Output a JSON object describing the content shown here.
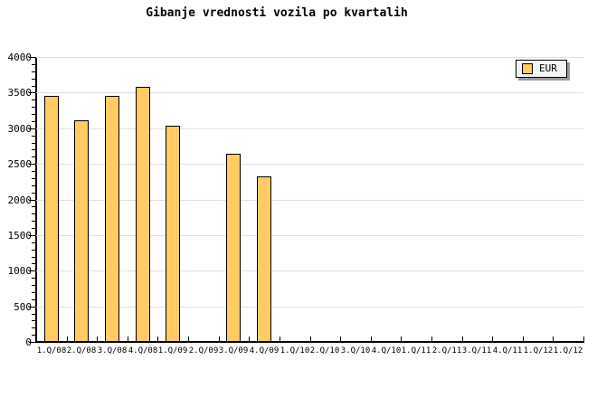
{
  "title": "Gibanje vrednosti vozila po kvartalih",
  "legend": {
    "label": "EUR",
    "position": "top-right",
    "swatch_color": "#FFCB63"
  },
  "colors": {
    "background": "#FFFFFF",
    "bar_fill": "#FFCB63",
    "bar_border": "#000000",
    "grid": "#E0E0E0",
    "axis": "#000000",
    "text": "#000000",
    "legend_bg": "#F4F4F4",
    "legend_shadow": "#999999"
  },
  "chart_data": {
    "type": "bar",
    "title": "Gibanje vrednosti vozila po kvartalih",
    "xlabel": "",
    "ylabel": "",
    "categories": [
      "1.Q/08",
      "2.Q/08",
      "3.Q/08",
      "4.Q/08",
      "1.Q/09",
      "2.Q/09",
      "3.Q/09",
      "4.Q/09",
      "1.Q/10",
      "2.Q/10",
      "3.Q/10",
      "4.Q/10",
      "1.Q/11",
      "2.Q/11",
      "3.Q/11",
      "4.Q/11",
      "1.Q/12",
      "1.Q/12"
    ],
    "series": [
      {
        "name": "EUR",
        "values": [
          3450,
          3110,
          3450,
          3580,
          3030,
          null,
          2640,
          2320,
          null,
          null,
          null,
          null,
          null,
          null,
          null,
          null,
          null,
          null
        ]
      }
    ],
    "ylim": [
      0,
      4000
    ],
    "y_major_step": 500,
    "y_minor_step": 100,
    "y_tick_labels": [
      "0",
      "500",
      "1000",
      "1500",
      "2000",
      "2500",
      "3000",
      "3500",
      "4000"
    ],
    "grid": "horizontal-major",
    "legend_position": "top-right"
  }
}
